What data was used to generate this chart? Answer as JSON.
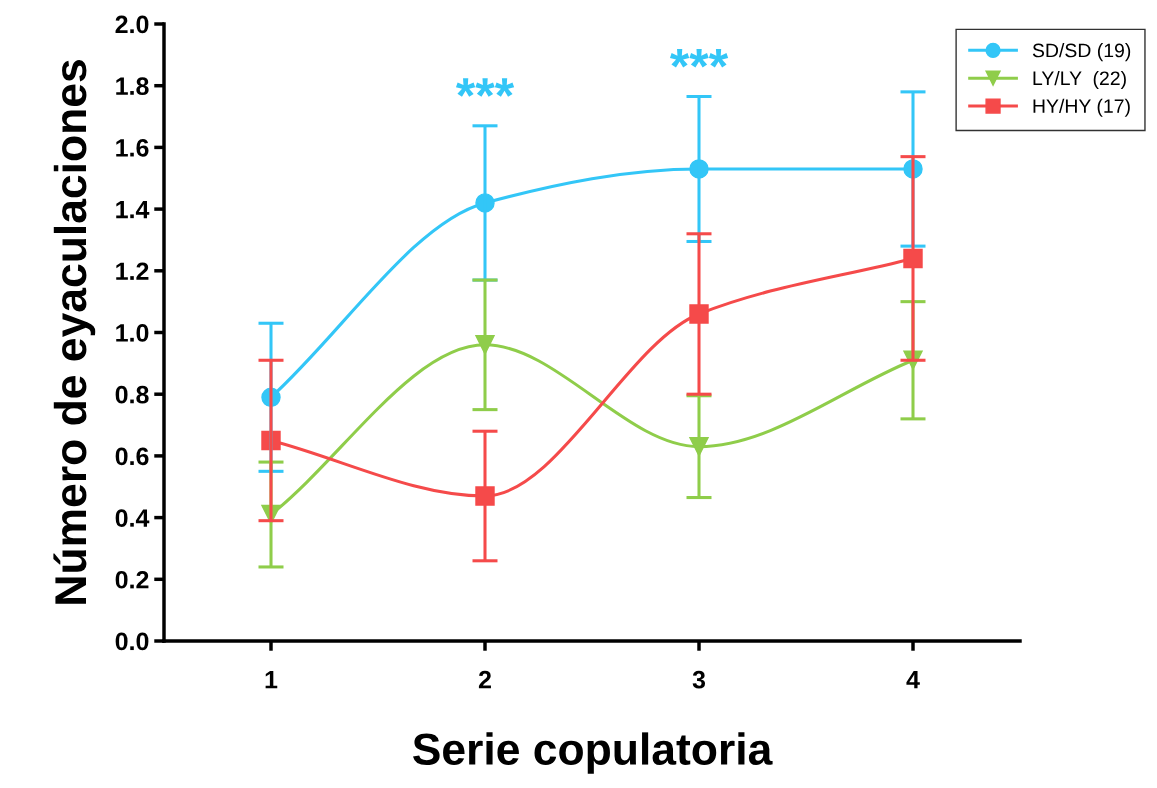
{
  "chart_data": {
    "type": "line",
    "xlabel": "Serie copulatoria",
    "ylabel": "Número de eyaculaciones",
    "x": [
      1,
      2,
      3,
      4
    ],
    "xlim": [
      0.5,
      4.5
    ],
    "xticks": [
      1,
      2,
      3,
      4
    ],
    "ylim": [
      0,
      2.0
    ],
    "yticks": [
      {
        "value": 0,
        "label": "0.0"
      },
      0.2,
      0.4,
      0.6,
      0.8,
      {
        "value": 1,
        "label": "1.0"
      },
      1.2,
      1.4,
      1.6,
      1.8,
      {
        "value": 2,
        "label": "2.0"
      }
    ],
    "grid": false,
    "legend": "top right",
    "line_style": "solid",
    "series": [
      {
        "name": "SD/SD (19)",
        "color": "#33c6f7",
        "marker": "circle",
        "values": [
          0.79,
          1.42,
          1.53,
          1.53
        ],
        "errors": [
          0.24,
          0.25,
          0.235,
          0.25
        ]
      },
      {
        "name": "LY/LY  (22)",
        "color": "#8fcd4a",
        "marker": "triangle",
        "values": [
          0.41,
          0.96,
          0.63,
          0.91
        ],
        "errors": [
          0.17,
          0.21,
          0.165,
          0.19
        ]
      },
      {
        "name": "HY/HY (17)",
        "color": "#f54a4a",
        "marker": "square",
        "values": [
          0.65,
          0.47,
          1.06,
          1.24
        ],
        "errors": [
          0.26,
          0.21,
          0.26,
          0.33
        ]
      }
    ],
    "annotations": [
      {
        "text": "***",
        "x": 2,
        "y": 1.67
      },
      {
        "text": "***",
        "x": 3,
        "y": 1.765
      }
    ]
  }
}
